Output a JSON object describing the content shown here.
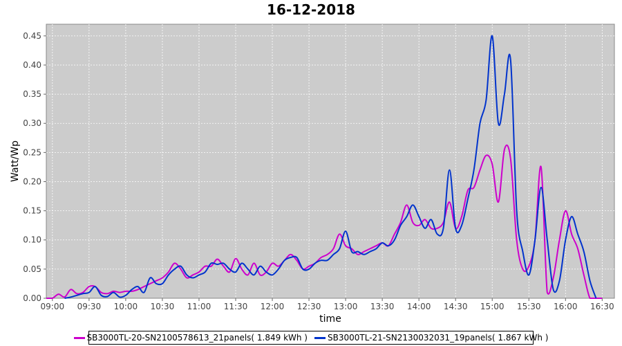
{
  "chart_data": {
    "type": "line",
    "title": "16-12-2018",
    "xlabel": "time",
    "ylabel": "Watt/Wp",
    "xlim": [
      "08:55",
      "16:40"
    ],
    "ylim": [
      0,
      0.47
    ],
    "x_ticks": [
      "09:00",
      "09:30",
      "10:00",
      "10:30",
      "11:00",
      "11:30",
      "12:00",
      "12:30",
      "13:00",
      "13:30",
      "14:00",
      "14:30",
      "15:00",
      "15:30",
      "16:00",
      "16:30"
    ],
    "y_ticks": [
      "0.00",
      "0.05",
      "0.10",
      "0.15",
      "0.20",
      "0.25",
      "0.30",
      "0.35",
      "0.40",
      "0.45"
    ],
    "grid": true,
    "legend_position": "bottom",
    "series": [
      {
        "name": "SB3000TL-20-SN2100578613_21panels( 1.849 kWh )",
        "color": "#cc00cc",
        "points": [
          [
            "08:55",
            0.0
          ],
          [
            "09:00",
            0.0
          ],
          [
            "09:05",
            0.007
          ],
          [
            "09:10",
            0.002
          ],
          [
            "09:15",
            0.015
          ],
          [
            "09:20",
            0.008
          ],
          [
            "09:25",
            0.01
          ],
          [
            "09:30",
            0.02
          ],
          [
            "09:35",
            0.02
          ],
          [
            "09:40",
            0.01
          ],
          [
            "09:45",
            0.008
          ],
          [
            "09:50",
            0.012
          ],
          [
            "09:55",
            0.01
          ],
          [
            "10:00",
            0.012
          ],
          [
            "10:05",
            0.012
          ],
          [
            "10:10",
            0.015
          ],
          [
            "10:15",
            0.02
          ],
          [
            "10:20",
            0.025
          ],
          [
            "10:25",
            0.03
          ],
          [
            "10:30",
            0.035
          ],
          [
            "10:35",
            0.045
          ],
          [
            "10:40",
            0.06
          ],
          [
            "10:45",
            0.05
          ],
          [
            "10:50",
            0.035
          ],
          [
            "10:55",
            0.04
          ],
          [
            "11:00",
            0.045
          ],
          [
            "11:05",
            0.055
          ],
          [
            "11:10",
            0.055
          ],
          [
            "11:15",
            0.067
          ],
          [
            "11:20",
            0.055
          ],
          [
            "11:25",
            0.045
          ],
          [
            "11:30",
            0.068
          ],
          [
            "11:35",
            0.05
          ],
          [
            "11:40",
            0.04
          ],
          [
            "11:45",
            0.06
          ],
          [
            "11:50",
            0.04
          ],
          [
            "11:55",
            0.045
          ],
          [
            "12:00",
            0.06
          ],
          [
            "12:05",
            0.055
          ],
          [
            "12:10",
            0.065
          ],
          [
            "12:15",
            0.075
          ],
          [
            "12:20",
            0.065
          ],
          [
            "12:25",
            0.05
          ],
          [
            "12:30",
            0.055
          ],
          [
            "12:35",
            0.06
          ],
          [
            "12:40",
            0.07
          ],
          [
            "12:45",
            0.075
          ],
          [
            "12:50",
            0.085
          ],
          [
            "12:55",
            0.11
          ],
          [
            "13:00",
            0.09
          ],
          [
            "13:05",
            0.085
          ],
          [
            "13:10",
            0.075
          ],
          [
            "13:15",
            0.08
          ],
          [
            "13:20",
            0.085
          ],
          [
            "13:25",
            0.09
          ],
          [
            "13:30",
            0.095
          ],
          [
            "13:35",
            0.09
          ],
          [
            "13:40",
            0.11
          ],
          [
            "13:45",
            0.13
          ],
          [
            "13:50",
            0.16
          ],
          [
            "13:55",
            0.13
          ],
          [
            "14:00",
            0.125
          ],
          [
            "14:05",
            0.135
          ],
          [
            "14:10",
            0.12
          ],
          [
            "14:15",
            0.12
          ],
          [
            "14:20",
            0.13
          ],
          [
            "14:25",
            0.165
          ],
          [
            "14:30",
            0.12
          ],
          [
            "14:35",
            0.14
          ],
          [
            "14:40",
            0.185
          ],
          [
            "14:45",
            0.19
          ],
          [
            "14:50",
            0.22
          ],
          [
            "14:55",
            0.245
          ],
          [
            "15:00",
            0.23
          ],
          [
            "15:05",
            0.165
          ],
          [
            "15:10",
            0.255
          ],
          [
            "15:15",
            0.24
          ],
          [
            "15:20",
            0.1
          ],
          [
            "15:25",
            0.05
          ],
          [
            "15:30",
            0.055
          ],
          [
            "15:35",
            0.1
          ],
          [
            "15:40",
            0.225
          ],
          [
            "15:45",
            0.01
          ],
          [
            "15:50",
            0.035
          ],
          [
            "15:55",
            0.1
          ],
          [
            "16:00",
            0.15
          ],
          [
            "16:05",
            0.11
          ],
          [
            "16:10",
            0.085
          ],
          [
            "16:15",
            0.04
          ],
          [
            "16:20",
            0.0
          ],
          [
            "16:25",
            0.0
          ],
          [
            "16:30",
            0.0
          ]
        ]
      },
      {
        "name": "SB3000TL-21-SN2130032031_19panels( 1.867 kWh )",
        "color": "#0033cc",
        "points": [
          [
            "09:10",
            0.0
          ],
          [
            "09:15",
            0.002
          ],
          [
            "09:20",
            0.005
          ],
          [
            "09:25",
            0.008
          ],
          [
            "09:30",
            0.01
          ],
          [
            "09:35",
            0.02
          ],
          [
            "09:40",
            0.005
          ],
          [
            "09:45",
            0.003
          ],
          [
            "09:50",
            0.01
          ],
          [
            "09:55",
            0.002
          ],
          [
            "10:00",
            0.005
          ],
          [
            "10:05",
            0.015
          ],
          [
            "10:10",
            0.02
          ],
          [
            "10:15",
            0.01
          ],
          [
            "10:20",
            0.035
          ],
          [
            "10:25",
            0.025
          ],
          [
            "10:30",
            0.025
          ],
          [
            "10:35",
            0.04
          ],
          [
            "10:40",
            0.05
          ],
          [
            "10:45",
            0.055
          ],
          [
            "10:50",
            0.04
          ],
          [
            "10:55",
            0.035
          ],
          [
            "11:00",
            0.04
          ],
          [
            "11:05",
            0.045
          ],
          [
            "11:10",
            0.06
          ],
          [
            "11:15",
            0.058
          ],
          [
            "11:20",
            0.06
          ],
          [
            "11:25",
            0.05
          ],
          [
            "11:30",
            0.045
          ],
          [
            "11:35",
            0.06
          ],
          [
            "11:40",
            0.05
          ],
          [
            "11:45",
            0.04
          ],
          [
            "11:50",
            0.055
          ],
          [
            "11:55",
            0.045
          ],
          [
            "12:00",
            0.04
          ],
          [
            "12:05",
            0.05
          ],
          [
            "12:10",
            0.065
          ],
          [
            "12:15",
            0.07
          ],
          [
            "12:20",
            0.07
          ],
          [
            "12:25",
            0.05
          ],
          [
            "12:30",
            0.05
          ],
          [
            "12:35",
            0.06
          ],
          [
            "12:40",
            0.065
          ],
          [
            "12:45",
            0.065
          ],
          [
            "12:50",
            0.075
          ],
          [
            "12:55",
            0.085
          ],
          [
            "13:00",
            0.115
          ],
          [
            "13:05",
            0.08
          ],
          [
            "13:10",
            0.08
          ],
          [
            "13:15",
            0.075
          ],
          [
            "13:20",
            0.08
          ],
          [
            "13:25",
            0.085
          ],
          [
            "13:30",
            0.095
          ],
          [
            "13:35",
            0.09
          ],
          [
            "13:40",
            0.1
          ],
          [
            "13:45",
            0.125
          ],
          [
            "13:50",
            0.14
          ],
          [
            "13:55",
            0.16
          ],
          [
            "14:00",
            0.14
          ],
          [
            "14:05",
            0.12
          ],
          [
            "14:10",
            0.135
          ],
          [
            "14:15",
            0.11
          ],
          [
            "14:20",
            0.12
          ],
          [
            "14:25",
            0.22
          ],
          [
            "14:30",
            0.12
          ],
          [
            "14:35",
            0.125
          ],
          [
            "14:40",
            0.17
          ],
          [
            "14:45",
            0.22
          ],
          [
            "14:50",
            0.3
          ],
          [
            "14:55",
            0.34
          ],
          [
            "15:00",
            0.45
          ],
          [
            "15:05",
            0.3
          ],
          [
            "15:10",
            0.35
          ],
          [
            "15:15",
            0.41
          ],
          [
            "15:20",
            0.15
          ],
          [
            "15:25",
            0.08
          ],
          [
            "15:30",
            0.04
          ],
          [
            "15:35",
            0.1
          ],
          [
            "15:40",
            0.19
          ],
          [
            "15:45",
            0.1
          ],
          [
            "15:50",
            0.015
          ],
          [
            "15:55",
            0.03
          ],
          [
            "16:00",
            0.1
          ],
          [
            "16:05",
            0.14
          ],
          [
            "16:10",
            0.11
          ],
          [
            "16:15",
            0.08
          ],
          [
            "16:20",
            0.03
          ],
          [
            "16:25",
            0.0
          ]
        ]
      }
    ]
  }
}
